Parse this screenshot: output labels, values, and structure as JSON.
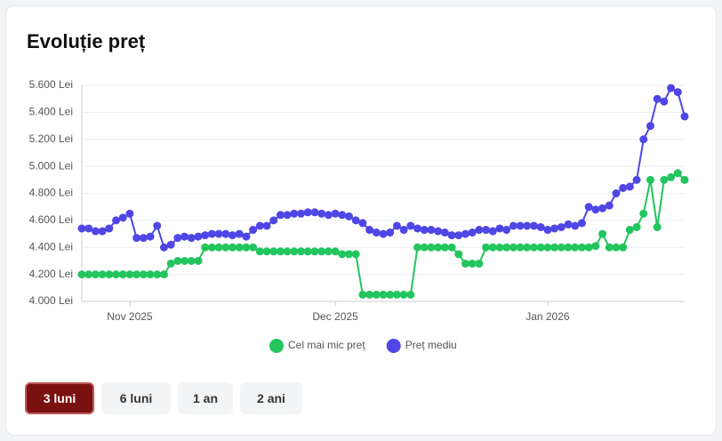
{
  "title": "Evoluție preț",
  "chart_data": {
    "type": "line",
    "categories": [
      null,
      null,
      null,
      null,
      null,
      null,
      null,
      "Nov 2025",
      null,
      null,
      null,
      null,
      null,
      null,
      null,
      null,
      null,
      null,
      null,
      null,
      null,
      null,
      null,
      null,
      null,
      null,
      null,
      null,
      null,
      null,
      null,
      null,
      null,
      null,
      null,
      null,
      null,
      "Dec 2025",
      null,
      null,
      null,
      null,
      null,
      null,
      null,
      null,
      null,
      null,
      null,
      null,
      null,
      null,
      null,
      null,
      null,
      null,
      null,
      null,
      null,
      null,
      null,
      null,
      null,
      null,
      null,
      null,
      null,
      null,
      "Jan 2026",
      null,
      null,
      null,
      null,
      null,
      null,
      null,
      null,
      null,
      null,
      null,
      null,
      null,
      null,
      null,
      null,
      null,
      null,
      null,
      null
    ],
    "series": [
      {
        "name": "Cel mai mic preț",
        "color": "#22c55e",
        "values": [
          4200,
          4200,
          4200,
          4200,
          4200,
          4200,
          4200,
          4200,
          4200,
          4200,
          4200,
          4200,
          4200,
          4280,
          4300,
          4300,
          4300,
          4300,
          4400,
          4400,
          4400,
          4400,
          4400,
          4400,
          4400,
          4400,
          4370,
          4370,
          4370,
          4370,
          4370,
          4370,
          4370,
          4370,
          4370,
          4370,
          4370,
          4370,
          4350,
          4350,
          4350,
          4050,
          4050,
          4050,
          4050,
          4050,
          4050,
          4050,
          4050,
          4400,
          4400,
          4400,
          4400,
          4400,
          4400,
          4350,
          4280,
          4280,
          4280,
          4400,
          4400,
          4400,
          4400,
          4400,
          4400,
          4400,
          4400,
          4400,
          4400,
          4400,
          4400,
          4400,
          4400,
          4400,
          4400,
          4410,
          4500,
          4400,
          4400,
          4400,
          4530,
          4550,
          4650,
          4900,
          4550,
          4900,
          4920,
          4950,
          4900
        ]
      },
      {
        "name": "Preț mediu",
        "color": "#4f46e5",
        "values": [
          4540,
          4540,
          4520,
          4520,
          4540,
          4600,
          4620,
          4650,
          4470,
          4470,
          4480,
          4560,
          4400,
          4420,
          4470,
          4480,
          4470,
          4480,
          4490,
          4500,
          4500,
          4500,
          4490,
          4500,
          4480,
          4530,
          4560,
          4560,
          4600,
          4640,
          4640,
          4650,
          4650,
          4660,
          4660,
          4650,
          4640,
          4650,
          4640,
          4630,
          4600,
          4580,
          4530,
          4510,
          4500,
          4510,
          4560,
          4530,
          4560,
          4540,
          4530,
          4530,
          4520,
          4510,
          4490,
          4490,
          4500,
          4510,
          4530,
          4530,
          4520,
          4540,
          4530,
          4560,
          4560,
          4560,
          4560,
          4550,
          4530,
          4540,
          4550,
          4570,
          4560,
          4580,
          4700,
          4680,
          4690,
          4710,
          4800,
          4840,
          4850,
          4900,
          5200,
          5300,
          5500,
          5480,
          5580,
          5550,
          5370
        ]
      }
    ],
    "ylim": [
      4000,
      5600
    ],
    "yticks": [
      {
        "value": 4000,
        "label": "4.000 Lei"
      },
      {
        "value": 4200,
        "label": "4.200 Lei"
      },
      {
        "value": 4400,
        "label": "4.400 Lei"
      },
      {
        "value": 4600,
        "label": "4.600 Lei"
      },
      {
        "value": 4800,
        "label": "4.800 Lei"
      },
      {
        "value": 5000,
        "label": "5.000 Lei"
      },
      {
        "value": 5200,
        "label": "5.200 Lei"
      },
      {
        "value": 5400,
        "label": "5.400 Lei"
      },
      {
        "value": 5600,
        "label": "5.600 Lei"
      }
    ],
    "grid": true,
    "legend": "bottom"
  },
  "buttons": [
    "3 luni",
    "6 luni",
    "1 an",
    "2 ani"
  ],
  "active_button": 0
}
